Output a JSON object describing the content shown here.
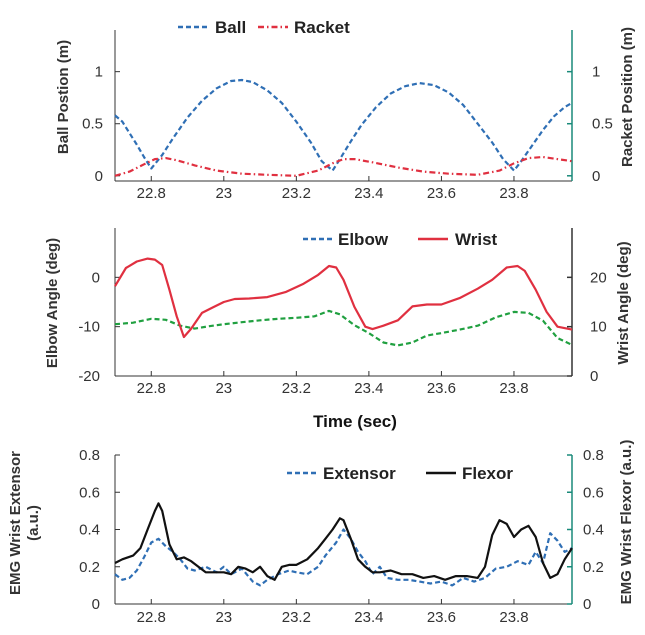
{
  "colors": {
    "ball": "#2f6fb5",
    "racket": "#e03040",
    "elbow": "#20a040",
    "elbow_legend": "#2f6fb5",
    "wrist": "#e03040",
    "extensor": "#2f6fb5",
    "flexor": "#111111",
    "right_axis_teal": "#1a8a7a",
    "axis": "#333333"
  },
  "time_axis_label": "Time (sec)",
  "chart_data": [
    {
      "type": "line",
      "ylabel": "Ball Postion (m)",
      "ylabel_right": "Racket Position (m)",
      "xlim": [
        22.7,
        23.96
      ],
      "ylim": [
        -0.05,
        1.4
      ],
      "x_ticks": [
        22.8,
        23,
        23.2,
        23.4,
        23.6,
        23.8
      ],
      "x_tick_labels": [
        "22.8",
        "23",
        "23.2",
        "23.4",
        "23.6",
        "23.8"
      ],
      "y_ticks": [
        0,
        0.5,
        1
      ],
      "y_tick_labels": [
        "0",
        "0.5",
        "1"
      ],
      "y_right_ticks": [
        0,
        0.5,
        1
      ],
      "y_right_tick_labels": [
        "0",
        "0.5",
        "1"
      ],
      "legend_position": "top",
      "series": [
        {
          "name": "Ball",
          "style": "dashed",
          "x": [
            22.7,
            22.72,
            22.74,
            22.76,
            22.78,
            22.8,
            22.83,
            22.86,
            22.9,
            22.94,
            22.98,
            23.02,
            23.05,
            23.08,
            23.12,
            23.16,
            23.2,
            23.24,
            23.27,
            23.3,
            23.32,
            23.35,
            23.38,
            23.42,
            23.46,
            23.5,
            23.54,
            23.58,
            23.62,
            23.66,
            23.7,
            23.74,
            23.77,
            23.8,
            23.82,
            23.85,
            23.88,
            23.91,
            23.94,
            23.96
          ],
          "values": [
            0.58,
            0.52,
            0.41,
            0.3,
            0.18,
            0.07,
            0.2,
            0.36,
            0.56,
            0.72,
            0.84,
            0.91,
            0.92,
            0.9,
            0.82,
            0.7,
            0.52,
            0.32,
            0.14,
            0.05,
            0.16,
            0.33,
            0.49,
            0.66,
            0.79,
            0.86,
            0.89,
            0.87,
            0.8,
            0.68,
            0.5,
            0.32,
            0.16,
            0.05,
            0.14,
            0.29,
            0.44,
            0.57,
            0.66,
            0.7
          ]
        },
        {
          "name": "Racket",
          "style": "dash-dot",
          "x": [
            22.7,
            22.74,
            22.78,
            22.81,
            22.84,
            22.87,
            22.92,
            22.98,
            23.05,
            23.12,
            23.2,
            23.26,
            23.3,
            23.33,
            23.36,
            23.41,
            23.48,
            23.55,
            23.62,
            23.7,
            23.76,
            23.8,
            23.84,
            23.88,
            23.92,
            23.96
          ],
          "values": [
            0.0,
            0.04,
            0.11,
            0.16,
            0.17,
            0.15,
            0.1,
            0.05,
            0.02,
            0.01,
            0.0,
            0.05,
            0.12,
            0.16,
            0.16,
            0.13,
            0.08,
            0.04,
            0.02,
            0.01,
            0.05,
            0.12,
            0.17,
            0.18,
            0.16,
            0.14
          ]
        }
      ]
    },
    {
      "type": "line",
      "ylabel": "Elbow Angle (deg)",
      "ylabel_right": "Wrist Angle (deg)",
      "xlim": [
        22.7,
        23.96
      ],
      "ylim": [
        -20,
        10
      ],
      "y_right_lim": [
        0,
        30
      ],
      "x_ticks": [
        22.8,
        23,
        23.2,
        23.4,
        23.6,
        23.8
      ],
      "x_tick_labels": [
        "22.8",
        "23",
        "23.2",
        "23.4",
        "23.6",
        "23.8"
      ],
      "y_ticks": [
        -20,
        -10,
        0
      ],
      "y_tick_labels": [
        "-20",
        "-10",
        "0"
      ],
      "y_right_ticks": [
        0,
        10,
        20
      ],
      "y_right_tick_labels": [
        "0",
        "10",
        "20"
      ],
      "legend_position": "top-right",
      "series": [
        {
          "name": "Elbow",
          "axis": "left",
          "style": "dashed",
          "x": [
            22.7,
            22.75,
            22.8,
            22.84,
            22.88,
            22.92,
            22.96,
            23.0,
            23.05,
            23.1,
            23.15,
            23.2,
            23.25,
            23.29,
            23.32,
            23.36,
            23.4,
            23.44,
            23.48,
            23.52,
            23.56,
            23.6,
            23.65,
            23.7,
            23.75,
            23.8,
            23.84,
            23.88,
            23.92,
            23.96
          ],
          "values": [
            -9.5,
            -9.2,
            -8.4,
            -8.6,
            -9.8,
            -10.4,
            -9.9,
            -9.5,
            -9.1,
            -8.7,
            -8.4,
            -8.2,
            -7.9,
            -6.8,
            -7.5,
            -9.7,
            -11.3,
            -13.2,
            -13.8,
            -13.2,
            -11.8,
            -11.3,
            -10.6,
            -9.8,
            -8.1,
            -7.0,
            -7.2,
            -8.8,
            -12.3,
            -13.7
          ]
        },
        {
          "name": "Wrist",
          "axis": "right",
          "style": "solid",
          "x": [
            22.7,
            22.73,
            22.76,
            22.79,
            22.81,
            22.83,
            22.85,
            22.87,
            22.89,
            22.91,
            22.94,
            22.97,
            23.0,
            23.03,
            23.07,
            23.12,
            23.17,
            23.22,
            23.26,
            23.29,
            23.31,
            23.33,
            23.36,
            23.39,
            23.41,
            23.44,
            23.48,
            23.52,
            23.56,
            23.6,
            23.65,
            23.7,
            23.74,
            23.78,
            23.81,
            23.83,
            23.86,
            23.89,
            23.92,
            23.96
          ],
          "values": [
            18.2,
            21.9,
            23.2,
            23.8,
            23.6,
            22.5,
            17.5,
            12.1,
            7.9,
            9.6,
            12.8,
            13.9,
            15.0,
            15.6,
            15.7,
            16.0,
            17.0,
            18.7,
            20.5,
            22.3,
            22.0,
            19.5,
            14.0,
            10.0,
            9.5,
            10.2,
            11.3,
            14.1,
            14.5,
            14.5,
            15.8,
            17.7,
            19.5,
            22.0,
            22.3,
            21.3,
            17.5,
            13.0,
            10.0,
            9.4
          ]
        }
      ]
    },
    {
      "type": "line",
      "ylabel": "EMG Wrist Extensor\n(a.u.)",
      "ylabel_right": "EMG Wrist Flexor (a.u.)",
      "xlim": [
        22.7,
        23.96
      ],
      "ylim": [
        0,
        0.8
      ],
      "x_ticks": [
        22.8,
        23,
        23.2,
        23.4,
        23.6,
        23.8
      ],
      "x_tick_labels": [
        "22.8",
        "23",
        "23.2",
        "23.4",
        "23.6",
        "23.8"
      ],
      "y_ticks": [
        0,
        0.2,
        0.4,
        0.6,
        0.8
      ],
      "y_tick_labels": [
        "0",
        "0.2",
        "0.4",
        "0.6",
        "0.8"
      ],
      "y_right_ticks": [
        0,
        0.2,
        0.4,
        0.6,
        0.8
      ],
      "y_right_tick_labels": [
        "0",
        "0.2",
        "0.4",
        "0.6",
        "0.8"
      ],
      "legend_position": "top-right",
      "series": [
        {
          "name": "Extensor",
          "style": "dashed",
          "x": [
            22.7,
            22.72,
            22.74,
            22.76,
            22.78,
            22.8,
            22.82,
            22.84,
            22.86,
            22.88,
            22.9,
            22.92,
            22.95,
            22.98,
            23.0,
            23.02,
            23.05,
            23.08,
            23.1,
            23.12,
            23.15,
            23.18,
            23.2,
            23.23,
            23.26,
            23.28,
            23.31,
            23.33,
            23.35,
            23.37,
            23.39,
            23.41,
            23.43,
            23.45,
            23.48,
            23.51,
            23.54,
            23.57,
            23.6,
            23.63,
            23.66,
            23.69,
            23.72,
            23.75,
            23.78,
            23.81,
            23.84,
            23.86,
            23.88,
            23.9,
            23.92,
            23.94,
            23.96
          ],
          "values": [
            0.16,
            0.13,
            0.14,
            0.18,
            0.25,
            0.33,
            0.35,
            0.31,
            0.28,
            0.24,
            0.19,
            0.18,
            0.2,
            0.17,
            0.2,
            0.16,
            0.19,
            0.12,
            0.1,
            0.13,
            0.16,
            0.18,
            0.17,
            0.16,
            0.2,
            0.26,
            0.33,
            0.4,
            0.35,
            0.28,
            0.23,
            0.16,
            0.2,
            0.14,
            0.13,
            0.13,
            0.12,
            0.11,
            0.12,
            0.1,
            0.14,
            0.12,
            0.14,
            0.19,
            0.2,
            0.23,
            0.21,
            0.28,
            0.22,
            0.38,
            0.34,
            0.28,
            0.3
          ]
        },
        {
          "name": "Flexor",
          "style": "solid",
          "x": [
            22.7,
            22.72,
            22.75,
            22.77,
            22.79,
            22.81,
            22.82,
            22.83,
            22.85,
            22.87,
            22.89,
            22.91,
            22.93,
            22.95,
            22.97,
            23.0,
            23.02,
            23.04,
            23.06,
            23.08,
            23.1,
            23.12,
            23.14,
            23.16,
            23.18,
            23.2,
            23.23,
            23.26,
            23.28,
            23.3,
            23.32,
            23.33,
            23.35,
            23.37,
            23.39,
            23.41,
            23.43,
            23.46,
            23.49,
            23.52,
            23.55,
            23.58,
            23.61,
            23.64,
            23.67,
            23.7,
            23.72,
            23.74,
            23.76,
            23.78,
            23.8,
            23.82,
            23.84,
            23.86,
            23.88,
            23.9,
            23.92,
            23.94,
            23.96
          ],
          "values": [
            0.22,
            0.24,
            0.26,
            0.3,
            0.4,
            0.5,
            0.54,
            0.5,
            0.32,
            0.24,
            0.25,
            0.23,
            0.2,
            0.17,
            0.17,
            0.17,
            0.16,
            0.2,
            0.19,
            0.17,
            0.2,
            0.15,
            0.13,
            0.2,
            0.21,
            0.21,
            0.24,
            0.3,
            0.35,
            0.4,
            0.46,
            0.45,
            0.35,
            0.24,
            0.2,
            0.17,
            0.17,
            0.18,
            0.16,
            0.16,
            0.14,
            0.15,
            0.13,
            0.15,
            0.15,
            0.14,
            0.2,
            0.37,
            0.45,
            0.43,
            0.36,
            0.4,
            0.42,
            0.36,
            0.22,
            0.14,
            0.16,
            0.24,
            0.3
          ]
        }
      ]
    }
  ]
}
